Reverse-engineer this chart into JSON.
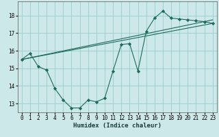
{
  "xlabel": "Humidex (Indice chaleur)",
  "bg_color": "#cce8e8",
  "grid_color": "#99cccc",
  "line_color": "#1a6b5a",
  "xlim": [
    -0.5,
    23.5
  ],
  "ylim": [
    12.5,
    18.8
  ],
  "xticks": [
    0,
    1,
    2,
    3,
    4,
    5,
    6,
    7,
    8,
    9,
    10,
    11,
    12,
    13,
    14,
    15,
    16,
    17,
    18,
    19,
    20,
    21,
    22,
    23
  ],
  "yticks": [
    13,
    14,
    15,
    16,
    17,
    18
  ],
  "line1_x": [
    0,
    1,
    2,
    3,
    4,
    5,
    6,
    7,
    8,
    9,
    10,
    11,
    12,
    13,
    14,
    15,
    16,
    17,
    18,
    19,
    20,
    21,
    22,
    23
  ],
  "line1_y": [
    15.5,
    15.85,
    15.1,
    14.9,
    13.85,
    13.2,
    12.75,
    12.75,
    13.2,
    13.1,
    13.3,
    14.85,
    16.35,
    16.4,
    14.85,
    17.1,
    17.85,
    18.25,
    17.85,
    17.8,
    17.75,
    17.7,
    17.65,
    17.55
  ],
  "line2_x": [
    0,
    23
  ],
  "line2_y": [
    15.5,
    17.55
  ],
  "line3_x": [
    0,
    23
  ],
  "line3_y": [
    15.5,
    17.75
  ]
}
